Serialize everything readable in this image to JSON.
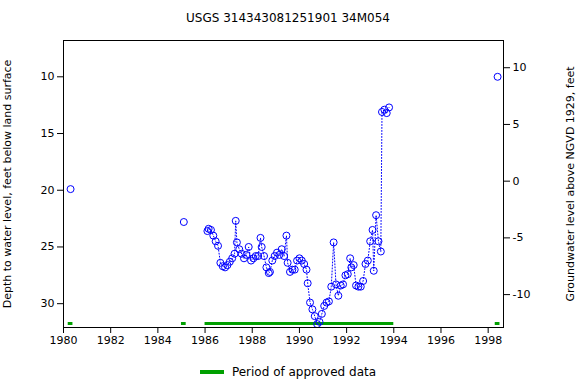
{
  "chart_data": {
    "type": "scatter",
    "title": "USGS 314343081251901 34M054",
    "y_label": "Depth to water level, feet below land surface",
    "y2_label": "Groundwater level above NGVD 1929, feet",
    "color": "#0000ff",
    "marker": "circle",
    "line_style": "dotted",
    "x": [
      1980.3,
      1982.5,
      1985.1,
      1985.6,
      1986.1,
      1986.15,
      1986.25,
      1986.35,
      1986.45,
      1986.55,
      1986.65,
      1986.75,
      1986.85,
      1986.95,
      1987.05,
      1987.15,
      1987.25,
      1987.3,
      1987.35,
      1987.45,
      1987.55,
      1987.65,
      1987.75,
      1987.85,
      1987.95,
      1988.05,
      1988.15,
      1988.25,
      1988.35,
      1988.4,
      1988.5,
      1988.6,
      1988.7,
      1988.75,
      1988.85,
      1988.95,
      1989.05,
      1989.15,
      1989.25,
      1989.35,
      1989.45,
      1989.5,
      1989.6,
      1989.7,
      1989.8,
      1989.9,
      1990.0,
      1990.1,
      1990.2,
      1990.3,
      1990.35,
      1990.45,
      1990.55,
      1990.65,
      1990.75,
      1990.85,
      1990.95,
      1991.05,
      1991.15,
      1991.25,
      1991.35,
      1991.45,
      1991.55,
      1991.65,
      1991.75,
      1991.85,
      1991.95,
      1992.05,
      1992.15,
      1992.2,
      1992.3,
      1992.4,
      1992.5,
      1992.6,
      1992.7,
      1992.8,
      1992.9,
      1993.0,
      1993.1,
      1993.15,
      1993.25,
      1993.35,
      1993.45,
      1993.5,
      1993.6,
      1993.7,
      1993.8,
      1996.0,
      1998.4
    ],
    "values": [
      19.9,
      null,
      22.8,
      null,
      23.6,
      23.4,
      23.5,
      24.0,
      24.5,
      24.9,
      26.4,
      26.7,
      26.8,
      26.6,
      26.3,
      26.0,
      25.6,
      22.7,
      24.6,
      25.2,
      25.6,
      26.0,
      25.7,
      25.0,
      26.2,
      26.0,
      25.8,
      25.8,
      24.2,
      25.0,
      25.8,
      26.8,
      27.3,
      27.2,
      26.2,
      25.8,
      25.5,
      25.7,
      25.2,
      25.8,
      24.0,
      26.4,
      27.2,
      27.0,
      27.0,
      26.2,
      26.0,
      26.2,
      26.5,
      27.0,
      28.2,
      29.9,
      30.5,
      31.1,
      31.8,
      31.6,
      30.9,
      30.2,
      29.9,
      29.8,
      28.5,
      24.6,
      28.3,
      29.3,
      28.4,
      28.3,
      27.5,
      27.4,
      26.0,
      26.8,
      26.6,
      28.4,
      28.5,
      28.5,
      28.0,
      26.5,
      26.2,
      24.5,
      23.5,
      27.1,
      22.2,
      24.5,
      25.4,
      13.1,
      12.9,
      13.2,
      12.7,
      null,
      10.0
    ],
    "xlim": [
      1980,
      1998.65
    ],
    "xticks": [
      1980,
      1982,
      1984,
      1986,
      1988,
      1990,
      1992,
      1994,
      1996,
      1998
    ],
    "ylim": [
      6.8,
      32.1
    ],
    "yticks": [
      10,
      15,
      20,
      25,
      30
    ],
    "y2lim": [
      12.4,
      -12.9
    ],
    "y2ticks": [
      -10,
      -5,
      0,
      5,
      10
    ],
    "approved_periods": {
      "name": "Period of approved data",
      "color": "#00a000",
      "ranges": [
        [
          1980.2,
          1980.4
        ],
        [
          1985.0,
          1985.2
        ],
        [
          1986.0,
          1994.0
        ],
        [
          1998.3,
          1998.5
        ]
      ]
    },
    "grid": false
  }
}
